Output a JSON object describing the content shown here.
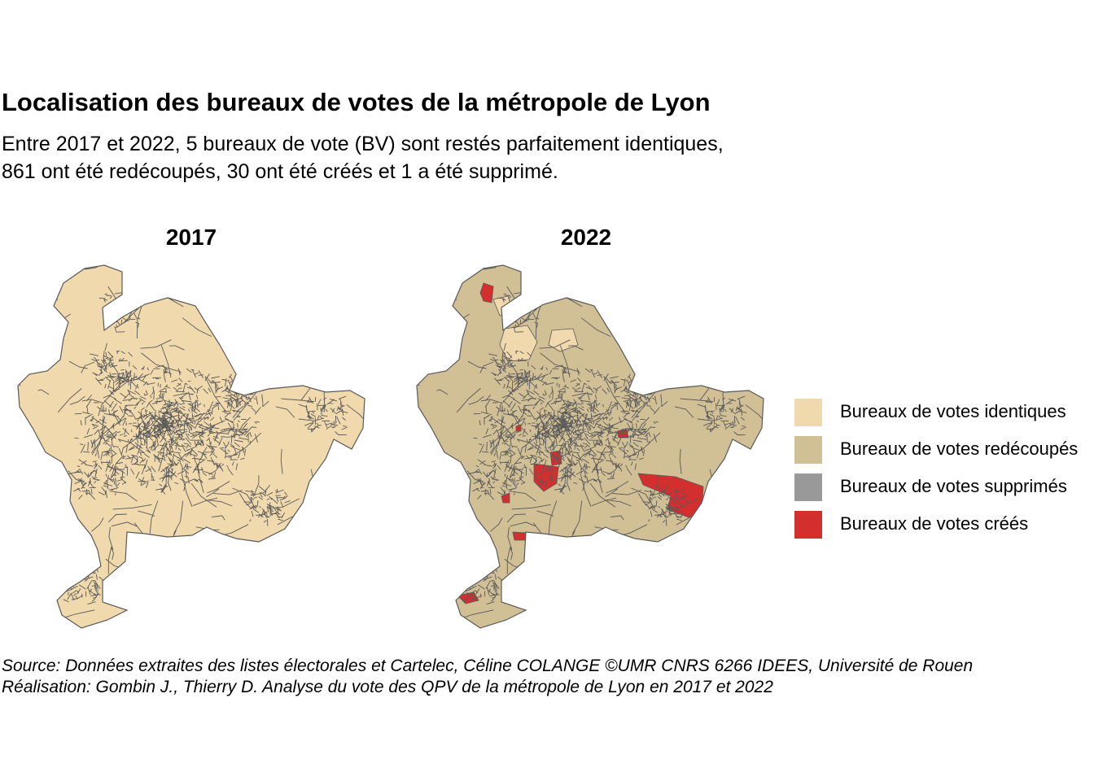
{
  "header": {
    "title": "Localisation des bureaux de votes de la métropole de Lyon",
    "subtitle_line1": "Entre 2017 et 2022, 5 bureaux de vote (BV) sont restés parfaitement identiques,",
    "subtitle_line2": "861 ont été redécoupés, 30 ont été créés et 1 a été supprimé."
  },
  "panels": [
    {
      "title": "2017"
    },
    {
      "title": "2022"
    }
  ],
  "legend": {
    "items": [
      {
        "label": "Bureaux de votes identiques",
        "color": "#f0d9ad"
      },
      {
        "label": "Bureaux de votes redécoupés",
        "color": "#d1bf96"
      },
      {
        "label": "Bureaux de votes supprimés",
        "color": "#999999"
      },
      {
        "label": "Bureaux de votes créés",
        "color": "#d32f2f"
      }
    ]
  },
  "style": {
    "border_color": "#595959"
  },
  "caption": {
    "source": "Source: Données extraites des listes électorales et Cartelec, Céline COLANGE ©UMR CNRS 6266 IDEES, Université de Rouen",
    "credit": "Réalisation: Gombin J., Thierry D. Analyse du vote des QPV de la métropole de Lyon en 2017 et 2022"
  }
}
